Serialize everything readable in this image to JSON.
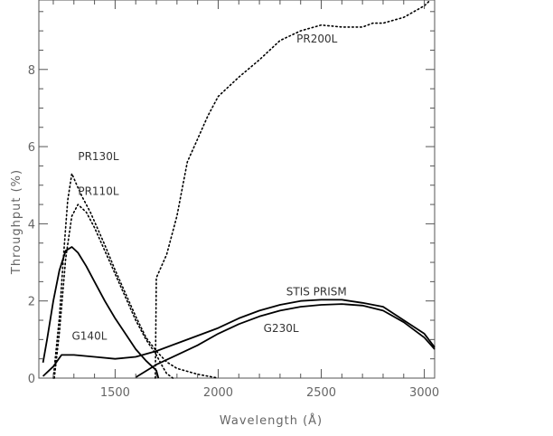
{
  "chart_data": {
    "type": "line",
    "title": "",
    "xlabel": "Wavelength (Å)",
    "ylabel": "Throughput (%)",
    "xlim": [
      1130,
      3050
    ],
    "ylim": [
      0,
      9.8
    ],
    "x_ticks": [
      1500,
      2000,
      2500,
      3000
    ],
    "y_ticks": [
      0,
      2,
      4,
      6,
      8
    ],
    "x_tick_labels": [
      "1500",
      "2000",
      "2500",
      "3000"
    ],
    "y_tick_labels": [
      "0",
      "2",
      "4",
      "6",
      "8"
    ],
    "grid": false,
    "legend": "none",
    "series": [
      {
        "name": "PR200L",
        "style": "dotted",
        "label_at": [
          2380,
          8.7
        ],
        "points": [
          [
            1695,
            0
          ],
          [
            1700,
            2.6
          ],
          [
            1750,
            3.2
          ],
          [
            1800,
            4.2
          ],
          [
            1850,
            5.6
          ],
          [
            1900,
            6.2
          ],
          [
            1950,
            6.8
          ],
          [
            2000,
            7.3
          ],
          [
            2100,
            7.8
          ],
          [
            2200,
            8.25
          ],
          [
            2300,
            8.75
          ],
          [
            2400,
            9.0
          ],
          [
            2500,
            9.15
          ],
          [
            2600,
            9.1
          ],
          [
            2700,
            9.1
          ],
          [
            2750,
            9.2
          ],
          [
            2800,
            9.2
          ],
          [
            2900,
            9.35
          ],
          [
            2950,
            9.5
          ],
          [
            3000,
            9.65
          ],
          [
            3030,
            9.8
          ]
        ]
      },
      {
        "name": "PR130L",
        "style": "dotted",
        "label_at": [
          1320,
          5.65
        ],
        "points": [
          [
            1200,
            0
          ],
          [
            1230,
            1.6
          ],
          [
            1250,
            3.2
          ],
          [
            1270,
            4.6
          ],
          [
            1290,
            5.3
          ],
          [
            1310,
            5.05
          ],
          [
            1340,
            4.7
          ],
          [
            1380,
            4.3
          ],
          [
            1450,
            3.45
          ],
          [
            1500,
            2.8
          ],
          [
            1550,
            2.2
          ],
          [
            1600,
            1.6
          ],
          [
            1650,
            1.05
          ],
          [
            1700,
            0.7
          ],
          [
            1750,
            0.42
          ],
          [
            1800,
            0.25
          ],
          [
            1900,
            0.1
          ],
          [
            2000,
            0.0
          ]
        ]
      },
      {
        "name": "PR110L",
        "style": "dotted",
        "label_at": [
          1320,
          4.75
        ],
        "points": [
          [
            1205,
            0
          ],
          [
            1230,
            1.2
          ],
          [
            1260,
            3.1
          ],
          [
            1290,
            4.2
          ],
          [
            1320,
            4.5
          ],
          [
            1360,
            4.3
          ],
          [
            1400,
            3.9
          ],
          [
            1450,
            3.3
          ],
          [
            1500,
            2.7
          ],
          [
            1550,
            2.1
          ],
          [
            1600,
            1.5
          ],
          [
            1650,
            1.0
          ],
          [
            1700,
            0.6
          ],
          [
            1730,
            0.3
          ],
          [
            1750,
            0.12
          ],
          [
            1780,
            0.0
          ]
        ]
      },
      {
        "name": "G140L",
        "style": "solid",
        "label_at": [
          1290,
          1.0
        ],
        "points": [
          [
            1150,
            0.4
          ],
          [
            1170,
            1.0
          ],
          [
            1200,
            2.0
          ],
          [
            1230,
            2.8
          ],
          [
            1260,
            3.3
          ],
          [
            1290,
            3.4
          ],
          [
            1320,
            3.25
          ],
          [
            1360,
            2.9
          ],
          [
            1400,
            2.5
          ],
          [
            1450,
            2.0
          ],
          [
            1500,
            1.55
          ],
          [
            1550,
            1.15
          ],
          [
            1600,
            0.75
          ],
          [
            1650,
            0.45
          ],
          [
            1700,
            0.2
          ],
          [
            1710,
            0.0
          ]
        ]
      },
      {
        "name": "STIS PRISM",
        "style": "solid",
        "label_at": [
          2330,
          2.15
        ],
        "points": [
          [
            1150,
            0.05
          ],
          [
            1200,
            0.3
          ],
          [
            1240,
            0.6
          ],
          [
            1300,
            0.6
          ],
          [
            1400,
            0.55
          ],
          [
            1500,
            0.5
          ],
          [
            1600,
            0.55
          ],
          [
            1700,
            0.7
          ],
          [
            1800,
            0.9
          ],
          [
            1900,
            1.1
          ],
          [
            2000,
            1.3
          ],
          [
            2100,
            1.55
          ],
          [
            2200,
            1.75
          ],
          [
            2300,
            1.9
          ],
          [
            2400,
            2.0
          ],
          [
            2500,
            2.03
          ],
          [
            2600,
            2.03
          ],
          [
            2700,
            1.95
          ],
          [
            2800,
            1.85
          ],
          [
            2900,
            1.5
          ],
          [
            3000,
            1.15
          ],
          [
            3050,
            0.8
          ]
        ]
      },
      {
        "name": "G230L",
        "style": "solid",
        "label_at": [
          2220,
          1.2
        ],
        "points": [
          [
            1600,
            0.02
          ],
          [
            1700,
            0.35
          ],
          [
            1800,
            0.6
          ],
          [
            1900,
            0.85
          ],
          [
            2000,
            1.15
          ],
          [
            2100,
            1.4
          ],
          [
            2200,
            1.6
          ],
          [
            2300,
            1.75
          ],
          [
            2400,
            1.85
          ],
          [
            2500,
            1.9
          ],
          [
            2600,
            1.92
          ],
          [
            2700,
            1.88
          ],
          [
            2800,
            1.75
          ],
          [
            2900,
            1.45
          ],
          [
            3000,
            1.05
          ],
          [
            3050,
            0.75
          ]
        ]
      }
    ]
  }
}
